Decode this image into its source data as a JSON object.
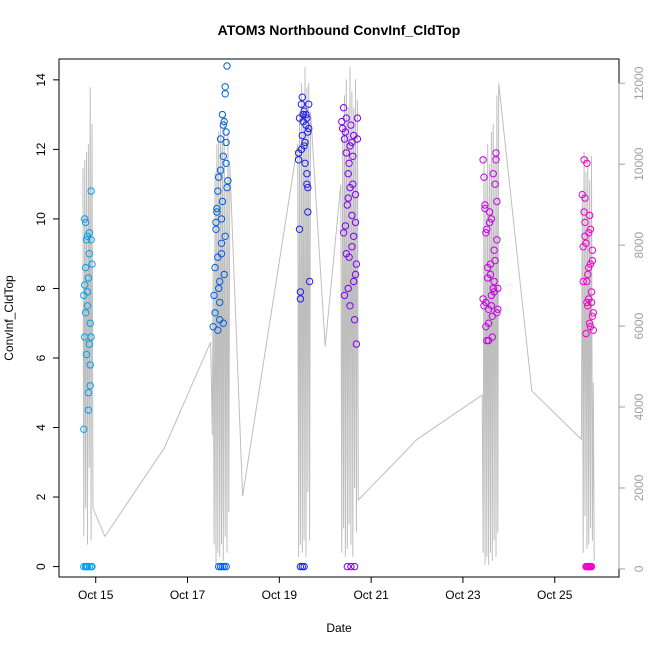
{
  "chart_data": {
    "type": "scatter",
    "title": "ATOM3 Northbound ConvInf_CldTop",
    "xlabel": "Date",
    "ylabel": "ConvInf_CldTop",
    "x_unit": "days (October)",
    "xlim": [
      14.2,
      26.4
    ],
    "ylim": [
      -0.3,
      14.6
    ],
    "x_ticks": [
      15,
      17,
      19,
      21,
      23,
      25
    ],
    "x_tick_labels": [
      "Oct 15",
      "Oct 17",
      "Oct 19",
      "Oct 21",
      "Oct 23",
      "Oct 25"
    ],
    "y_ticks": [
      0,
      2,
      4,
      6,
      8,
      10,
      12,
      14
    ],
    "y_tick_labels": [
      "0",
      "2",
      "4",
      "6",
      "8",
      "10",
      "12",
      "14"
    ],
    "y2lim": [
      -200,
      12600
    ],
    "y2_ticks": [
      0,
      2000,
      4000,
      6000,
      8000,
      10000,
      12000
    ],
    "y2_tick_labels": [
      "0",
      "2000",
      "4000",
      "6000",
      "8000",
      "10000",
      "12000"
    ],
    "grid": false,
    "legend": "none",
    "colors": {
      "secondary_line": "#bebebe",
      "right_axis": "#a0a0a0",
      "flight_colors": [
        "#00a0f0",
        "#0060e0",
        "#2020e8",
        "#8000f0",
        "#c800e8",
        "#f000c8"
      ]
    },
    "series": [
      {
        "x": [
          14.74,
          14.74,
          14.76,
          14.76,
          14.78,
          14.78,
          14.8,
          14.8,
          14.82,
          14.82,
          14.84,
          14.84,
          14.86,
          14.86,
          14.88,
          14.88,
          14.9,
          14.9,
          14.92,
          14.74,
          14.78,
          14.8,
          14.82,
          14.86,
          14.9,
          14.92,
          14.78,
          14.84,
          14.88,
          14.76,
          14.82,
          14.86,
          14.9
        ],
        "y": [
          3.95,
          7.8,
          10.0,
          8.1,
          9.9,
          8.6,
          9.4,
          6.1,
          9.5,
          7.9,
          8.3,
          5.0,
          6.4,
          9.6,
          7.0,
          5.2,
          10.8,
          6.6,
          8.7,
          0,
          0,
          0,
          0,
          0,
          0,
          0,
          7.3,
          4.5,
          5.8,
          6.6,
          7.5,
          9.0,
          9.4
        ]
      },
      {
        "x": [
          17.56,
          17.58,
          17.6,
          17.62,
          17.64,
          17.66,
          17.68,
          17.7,
          17.72,
          17.74,
          17.76,
          17.78,
          17.8,
          17.82,
          17.84,
          17.86,
          17.88,
          17.6,
          17.62,
          17.64,
          17.66,
          17.68,
          17.7,
          17.72,
          17.74,
          17.76,
          17.78,
          17.8,
          17.82,
          17.84,
          17.86,
          17.68,
          17.72,
          17.76,
          17.8,
          17.84,
          17.66,
          17.7,
          17.74,
          17.78,
          17.82,
          17.84
        ],
        "y": [
          6.9,
          7.8,
          8.6,
          9.7,
          10.3,
          10.8,
          11.2,
          7.1,
          12.3,
          9.0,
          13.0,
          12.7,
          8.4,
          13.8,
          12.2,
          14.4,
          11.1,
          7.3,
          9.9,
          10.2,
          8.9,
          8.0,
          7.6,
          11.4,
          9.3,
          10.5,
          7.0,
          12.8,
          9.5,
          11.6,
          10.9,
          0,
          0,
          0,
          0,
          0,
          6.8,
          8.2,
          10.0,
          11.8,
          13.6,
          12.5
        ]
      },
      {
        "x": [
          19.42,
          19.44,
          19.46,
          19.48,
          19.5,
          19.52,
          19.54,
          19.56,
          19.58,
          19.6,
          19.62,
          19.64,
          19.66,
          19.44,
          19.48,
          19.52,
          19.56,
          19.6,
          19.64,
          19.46,
          19.5,
          19.54,
          19.58,
          19.62,
          19.46,
          19.5,
          19.54,
          19.42,
          19.6,
          19.62
        ],
        "y": [
          11.7,
          12.9,
          7.7,
          13.3,
          12.4,
          12.8,
          13.1,
          12.2,
          12.7,
          11.0,
          10.2,
          13.3,
          8.2,
          9.7,
          12.0,
          13.0,
          11.6,
          12.9,
          12.6,
          7.9,
          13.5,
          12.1,
          13.0,
          12.5,
          0,
          0,
          0,
          11.9,
          11.3,
          10.9
        ]
      },
      {
        "x": [
          20.36,
          20.38,
          20.4,
          20.42,
          20.44,
          20.46,
          20.48,
          20.5,
          20.52,
          20.54,
          20.56,
          20.58,
          20.6,
          20.62,
          20.64,
          20.66,
          20.68,
          20.7,
          20.42,
          20.46,
          20.5,
          20.54,
          20.58,
          20.62,
          20.66,
          20.48,
          20.56,
          20.64,
          20.52,
          20.6,
          20.68,
          20.44,
          20.5,
          20.58,
          20.66,
          20.7,
          20.4,
          20.46,
          20.54,
          20.62
        ],
        "y": [
          12.8,
          12.6,
          13.2,
          12.3,
          9.8,
          12.9,
          10.4,
          8.0,
          11.6,
          12.1,
          12.7,
          9.2,
          11.0,
          12.4,
          7.1,
          10.7,
          6.4,
          12.9,
          7.8,
          9.0,
          11.3,
          7.5,
          10.1,
          9.5,
          8.4,
          0,
          0,
          0,
          8.9,
          11.8,
          8.7,
          12.5,
          10.6,
          12.2,
          9.9,
          12.3,
          9.6,
          11.9,
          10.9,
          8.2
        ]
      },
      {
        "x": [
          23.44,
          23.46,
          23.48,
          23.5,
          23.52,
          23.54,
          23.56,
          23.58,
          23.6,
          23.62,
          23.64,
          23.66,
          23.68,
          23.7,
          23.72,
          23.74,
          23.76,
          23.46,
          23.5,
          23.54,
          23.58,
          23.62,
          23.66,
          23.7,
          23.74,
          23.48,
          23.52,
          23.56,
          23.6,
          23.64,
          23.68,
          23.72,
          23.76,
          23.44,
          23.5,
          23.56,
          23.62,
          23.68,
          23.74
        ],
        "y": [
          11.7,
          7.5,
          10.3,
          9.6,
          6.5,
          8.3,
          7.4,
          10.2,
          8.7,
          7.8,
          6.6,
          11.3,
          7.9,
          8.8,
          11.7,
          9.4,
          7.4,
          11.2,
          6.9,
          8.6,
          9.9,
          7.5,
          8.0,
          11.0,
          10.5,
          10.4,
          9.7,
          7.0,
          8.4,
          7.2,
          9.1,
          11.9,
          8.0,
          7.7,
          7.6,
          6.5,
          10.0,
          8.2,
          7.3
        ]
      },
      {
        "x": [
          25.6,
          25.62,
          25.64,
          25.66,
          25.68,
          25.7,
          25.72,
          25.74,
          25.76,
          25.78,
          25.8,
          25.82,
          25.84,
          25.62,
          25.66,
          25.7,
          25.74,
          25.78,
          25.82,
          25.64,
          25.68,
          25.72,
          25.76,
          25.8,
          25.68,
          25.7,
          25.72,
          25.74,
          25.76,
          25.78,
          25.8,
          25.66,
          25.7,
          25.74,
          25.78,
          25.82,
          25.84
        ],
        "y": [
          10.7,
          9.2,
          11.7,
          10.6,
          9.3,
          8.2,
          7.5,
          9.6,
          10.1,
          8.7,
          7.6,
          9.1,
          7.3,
          8.2,
          9.9,
          11.6,
          7.7,
          6.9,
          8.8,
          10.2,
          6.7,
          8.4,
          7.0,
          7.9,
          0,
          0,
          0,
          0,
          0,
          0,
          0,
          9.5,
          7.6,
          8.6,
          9.7,
          7.2,
          6.8
        ]
      }
    ],
    "secondary_line": {
      "axis": "right",
      "x": [
        14.72,
        14.74,
        14.76,
        14.78,
        14.8,
        14.82,
        14.84,
        14.86,
        14.88,
        14.9,
        14.92,
        14.94,
        15.2,
        16.5,
        17.5,
        17.52,
        17.54,
        17.56,
        17.58,
        17.6,
        17.62,
        17.64,
        17.66,
        17.68,
        17.7,
        17.72,
        17.74,
        17.76,
        17.78,
        17.8,
        17.82,
        17.84,
        17.86,
        17.88,
        17.9,
        17.92,
        18.2,
        19.4,
        19.42,
        19.44,
        19.46,
        19.48,
        19.5,
        19.52,
        19.54,
        19.56,
        19.58,
        19.6,
        19.62,
        19.64,
        19.66,
        19.68,
        20.0,
        20.34,
        20.36,
        20.38,
        20.4,
        20.42,
        20.44,
        20.46,
        20.48,
        20.5,
        20.52,
        20.54,
        20.56,
        20.58,
        20.6,
        20.62,
        20.64,
        20.66,
        20.68,
        20.7,
        20.72,
        22.0,
        23.42,
        23.44,
        23.46,
        23.48,
        23.5,
        23.52,
        23.54,
        23.56,
        23.58,
        23.6,
        23.62,
        23.64,
        23.66,
        23.68,
        23.7,
        23.72,
        23.74,
        23.76,
        23.78,
        24.5,
        25.58,
        25.6,
        25.62,
        25.64,
        25.66,
        25.68,
        25.7,
        25.72,
        25.74,
        25.76,
        25.78,
        25.8,
        25.82,
        25.84,
        25.86
      ],
      "y": [
        9900,
        800,
        10100,
        1500,
        10300,
        600,
        10500,
        2500,
        11900,
        700,
        11000,
        1500,
        800,
        3000,
        5600,
        4700,
        3300,
        7400,
        600,
        9800,
        100,
        10500,
        400,
        10800,
        300,
        11000,
        600,
        10500,
        200,
        11200,
        800,
        9500,
        400,
        10800,
        1400,
        10000,
        1800,
        10500,
        300,
        11300,
        600,
        12000,
        400,
        11600,
        700,
        12400,
        300,
        11900,
        1900,
        12000,
        700,
        11300,
        5500,
        9500,
        400,
        11000,
        1000,
        11700,
        300,
        12100,
        500,
        11400,
        1100,
        12400,
        600,
        11800,
        300,
        11400,
        2000,
        12100,
        900,
        11600,
        1700,
        3200,
        4300,
        400,
        10200,
        100,
        9700,
        300,
        10500,
        100,
        10000,
        400,
        10800,
        200,
        11000,
        700,
        10200,
        300,
        11700,
        900,
        12000,
        4400,
        3200,
        9300,
        400,
        10300,
        1300,
        9800,
        500,
        10200,
        600,
        9600,
        1000,
        10200,
        700,
        4600,
        200
      ]
    }
  }
}
